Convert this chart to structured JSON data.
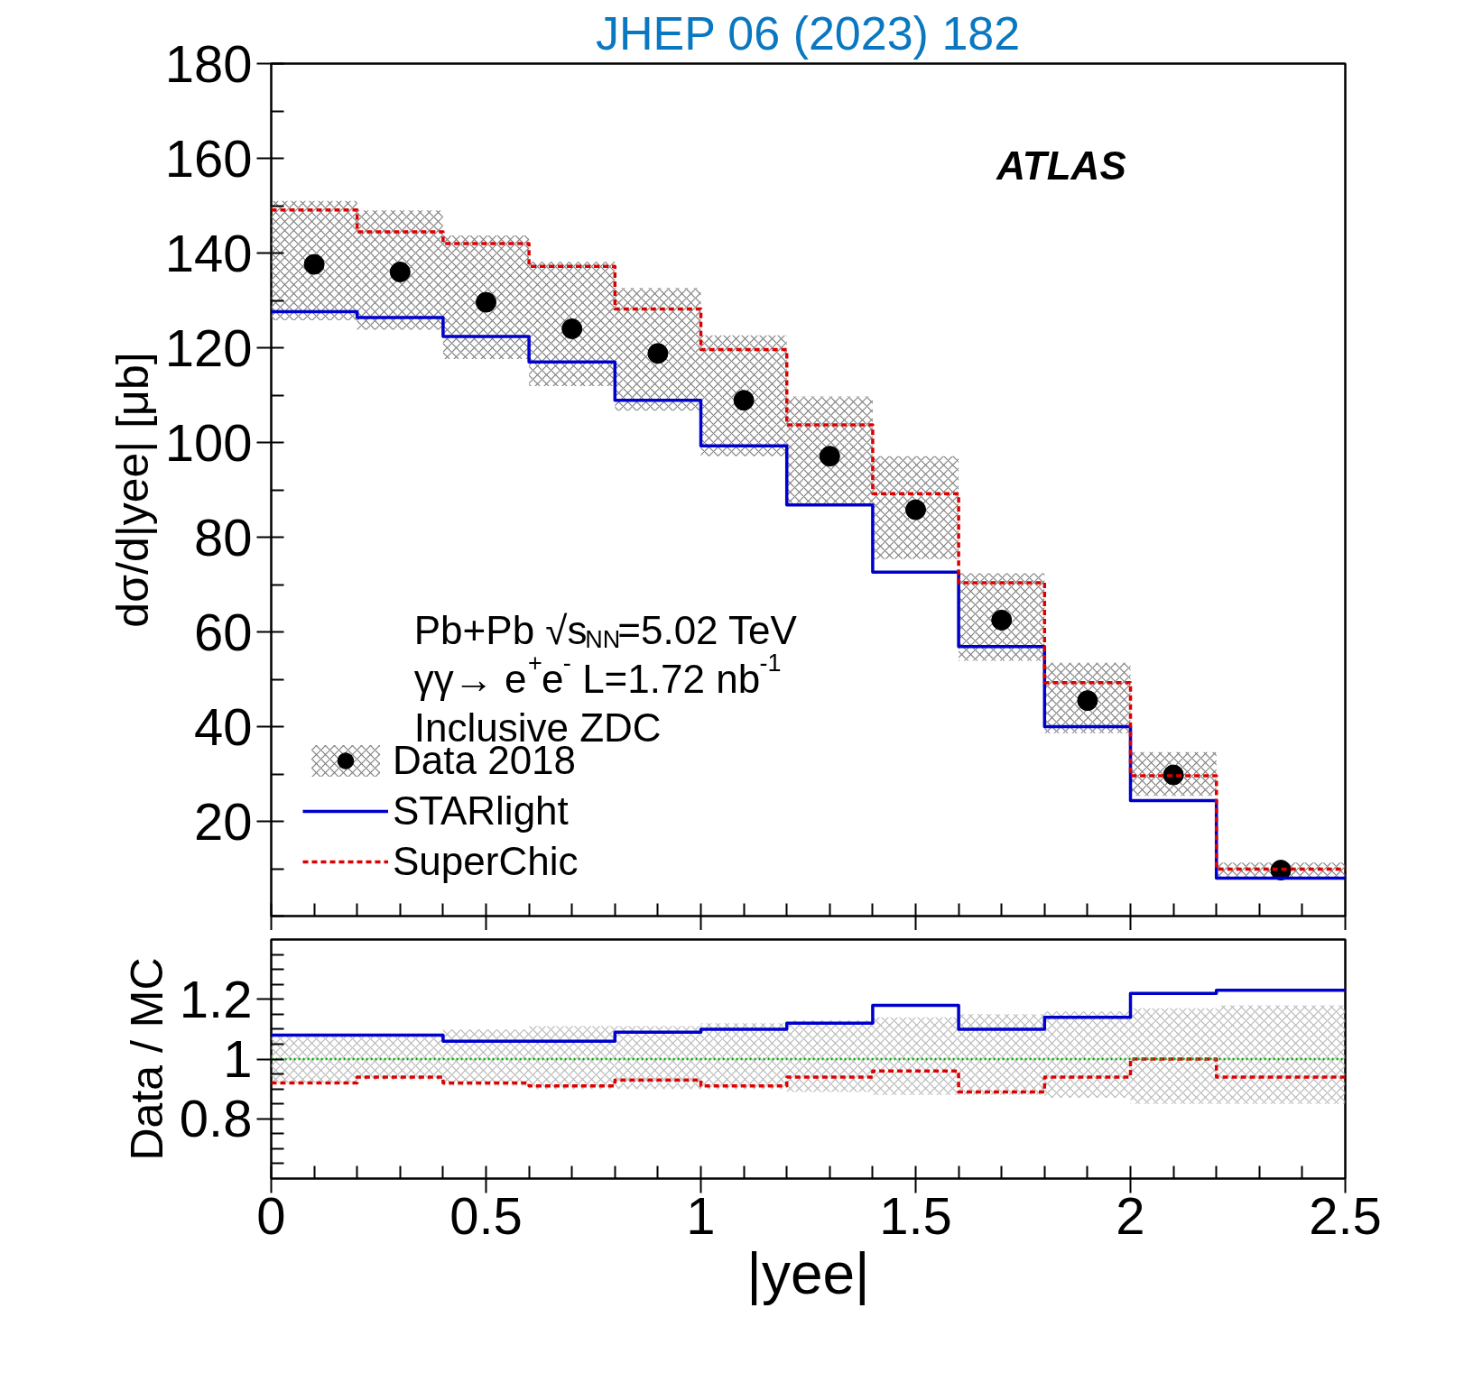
{
  "chart_data": [
    {
      "type": "step",
      "title": "JHEP 06 (2023) 182",
      "ylabel": "dσ/d|yee| [μb]",
      "xlim": [
        0,
        2.5
      ],
      "ylim": [
        0,
        180
      ],
      "xticks": [
        0,
        0.5,
        1,
        1.5,
        2,
        2.5
      ],
      "yticks": [
        20,
        40,
        60,
        80,
        100,
        120,
        140,
        160,
        180
      ],
      "tick_labels": "y",
      "legend": "bottom left",
      "grid": false,
      "annotations": [
        "ATLAS",
        "Pb+Pb √s$_{NN}$=5.02 TeV",
        "γγ→ e$^{+}$e$^{-}$ L=1.72 nb$^{-1}$",
        "Inclusive ZDC"
      ],
      "series": [
        {
          "type": "histogram",
          "color": "#808080",
          "bins": [
            0,
            0.2,
            0.4,
            0.6,
            0.8,
            1.0,
            1.2,
            1.4,
            1.6,
            1.8,
            2.0,
            2.2,
            2.5
          ],
          "base": [
            125.8,
            123.8,
            117.6,
            111.9,
            106.7,
            97.1,
            87.2,
            75.4,
            53.9,
            38.6,
            25.4,
            8
          ],
          "values": [
            25.2,
            25.2,
            26.1,
            26.3,
            25.9,
            25.5,
            22.5,
            21.7,
            18.5,
            14.9,
            9.2,
            3.3
          ]
        },
        {
          "name": "Data 2018",
          "type": "scatter",
          "marker": "circle",
          "color": "#000000",
          "x": [
            0.1,
            0.3,
            0.5,
            0.7,
            0.9,
            1.1,
            1.3,
            1.5,
            1.7,
            1.9,
            2.1,
            2.35
          ],
          "values": [
            137.6,
            136,
            129.6,
            124,
            118.8,
            108.9,
            97.1,
            85.8,
            62.5,
            45.5,
            29.8,
            9.7
          ]
        },
        {
          "name": "STARlight",
          "color": "#0000cc",
          "line_style": "solid",
          "x": [
            0,
            0.2,
            0.4,
            0.6,
            0.8,
            1.0,
            1.2,
            1.4,
            1.6,
            1.8,
            2.0,
            2.2,
            2.5
          ],
          "values": [
            127.6,
            126.4,
            122.4,
            117,
            108.9,
            99.3,
            86.8,
            72.6,
            56.9,
            40,
            24.4,
            8,
            8
          ]
        },
        {
          "name": "SuperChic",
          "color": "#dd0000",
          "line_style": "dashed",
          "x": [
            0,
            0.2,
            0.4,
            0.6,
            0.8,
            1.0,
            1.2,
            1.4,
            1.6,
            1.8,
            2.0,
            2.2,
            2.5
          ],
          "values": [
            149.1,
            144.5,
            142,
            137.2,
            128.2,
            119.6,
            103.7,
            89.2,
            70.4,
            49.3,
            29.6,
            9.9,
            9.9
          ]
        }
      ]
    },
    {
      "type": "step",
      "ylabel": "Data / MC",
      "xlabel": "|yee|",
      "xlim": [
        0,
        2.5
      ],
      "ylim": [
        0.6,
        1.4
      ],
      "xticks": [
        0,
        0.5,
        1,
        1.5,
        2,
        2.5
      ],
      "yticks": [
        0.8,
        1,
        1.2
      ],
      "grid": false,
      "ref_lines": [
        {
          "axis": "y",
          "value": 1,
          "color": "#00aa00",
          "line_style": "dotted"
        }
      ],
      "series": [
        {
          "type": "histogram",
          "color": "#b8b8b8",
          "bins": [
            0,
            0.2,
            0.4,
            0.6,
            0.8,
            1.0,
            1.2,
            1.4,
            1.6,
            1.8,
            2.0,
            2.2,
            2.5
          ],
          "base": [
            0.92,
            0.93,
            0.91,
            0.9,
            0.9,
            0.9,
            0.89,
            0.88,
            0.88,
            0.87,
            0.85,
            0.85
          ],
          "values": [
            0.16,
            0.15,
            0.19,
            0.21,
            0.21,
            0.22,
            0.24,
            0.26,
            0.27,
            0.29,
            0.32,
            0.33
          ]
        },
        {
          "color": "#0000cc",
          "line_style": "solid",
          "x": [
            0,
            0.2,
            0.4,
            0.6,
            0.8,
            1.0,
            1.2,
            1.4,
            1.6,
            1.8,
            2.0,
            2.2,
            2.5
          ],
          "values": [
            1.08,
            1.08,
            1.06,
            1.06,
            1.09,
            1.1,
            1.12,
            1.18,
            1.1,
            1.14,
            1.22,
            1.23,
            1.23
          ]
        },
        {
          "color": "#dd0000",
          "line_style": "dashed",
          "x": [
            0,
            0.2,
            0.4,
            0.6,
            0.8,
            1.0,
            1.2,
            1.4,
            1.6,
            1.8,
            2.0,
            2.2,
            2.5
          ],
          "values": [
            0.92,
            0.94,
            0.92,
            0.91,
            0.93,
            0.91,
            0.94,
            0.96,
            0.89,
            0.94,
            1.0,
            0.94,
            0.94
          ]
        }
      ]
    }
  ]
}
